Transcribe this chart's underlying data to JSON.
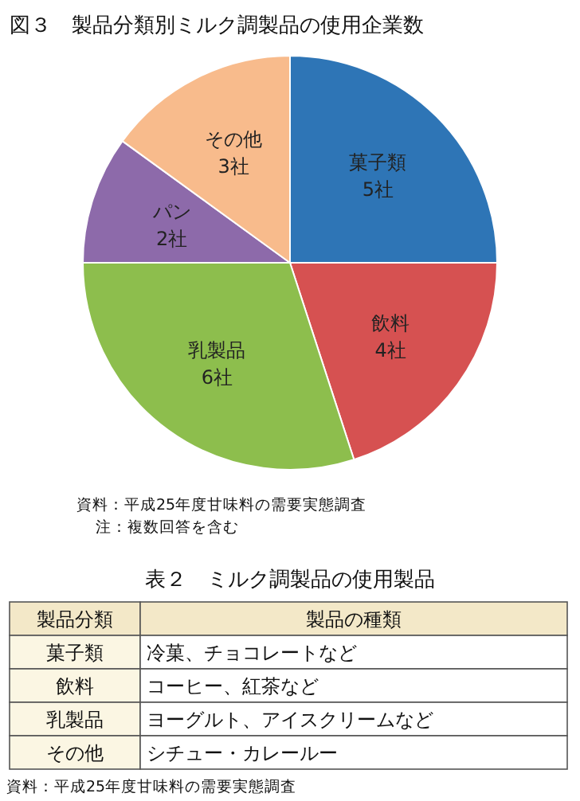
{
  "chart_data": {
    "type": "pie",
    "title": "図３　製品分類別ミルク調製品の使用企業数",
    "categories": [
      "菓子類",
      "飲料",
      "乳製品",
      "パン",
      "その他"
    ],
    "values": [
      5,
      4,
      6,
      2,
      3
    ],
    "value_labels": [
      "5社",
      "4社",
      "6社",
      "2社",
      "3社"
    ],
    "colors": [
      "#2e75b6",
      "#d65151",
      "#8dbe4d",
      "#8d6aaa",
      "#f8bb8c"
    ],
    "annotations": [
      "資料：平成25年度甘味料の需要実態調査",
      "注：複数回答を含む",
      "表２　ミルク調製品の使用製品",
      "製品分類",
      "製品の種類",
      "菓子類",
      "冷菓、チョコレートなど",
      "飲料",
      "コーヒー、紅茶など",
      "乳製品",
      "ヨーグルト、アイスクリームなど",
      "その他",
      "シチュー・カレールー",
      "資料：平成25年度甘味料の需要実態調査"
    ]
  }
}
